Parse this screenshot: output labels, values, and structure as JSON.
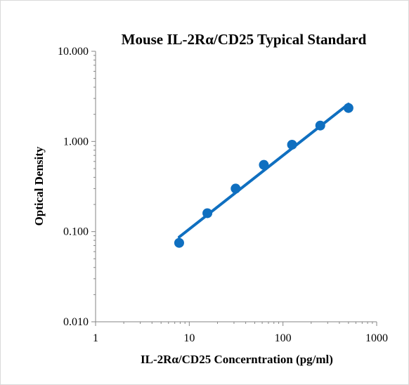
{
  "chart_data": {
    "type": "scatter",
    "title": "Mouse IL-2Rα/CD25 Typical Standard",
    "xlabel": "IL-2Rα/CD25 Concerntration (pg/ml)",
    "ylabel": "Optical Density",
    "x_scale": "log",
    "y_scale": "log",
    "xlim": [
      1,
      1000
    ],
    "ylim": [
      0.01,
      10
    ],
    "x_ticks": [
      "1",
      "10",
      "100",
      "1000"
    ],
    "y_ticks": [
      "10.000",
      "1.000",
      "0.100",
      "0.010"
    ],
    "grid": false,
    "legend": "none",
    "series": [
      {
        "x": [
          7.8,
          15.6,
          31.25,
          62.5,
          125,
          250,
          500
        ],
        "y": [
          0.075,
          0.16,
          0.3,
          0.55,
          0.92,
          1.5,
          2.35
        ]
      }
    ],
    "trendline": {
      "x": [
        7.8,
        500
      ],
      "y": [
        0.087,
        2.6
      ]
    },
    "colors": {
      "marker": "#0f6fc0",
      "line": "#0f6fc0"
    }
  }
}
